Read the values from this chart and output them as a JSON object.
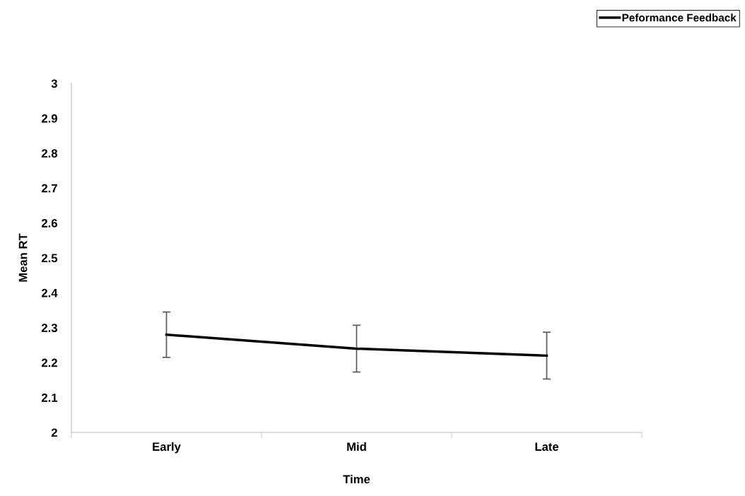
{
  "chart_data": {
    "type": "line",
    "xlabel": "Time",
    "ylabel": "Mean RT",
    "categories": [
      "Early",
      "Mid",
      "Late"
    ],
    "series": [
      {
        "name": "Peformance Feedback",
        "color": "#000000",
        "values": [
          2.28,
          2.24,
          2.22
        ],
        "errors": [
          0.065,
          0.067,
          0.067
        ]
      }
    ],
    "ylim": [
      2,
      3
    ],
    "yticks": [
      2,
      {
        "value": 2.1,
        "label": "2.1"
      },
      {
        "value": 2.2,
        "label": "2.2"
      },
      {
        "value": 2.3,
        "label": "2.3"
      },
      {
        "value": 2.4,
        "label": "2.4"
      },
      {
        "value": 2.5,
        "label": "2.5"
      },
      {
        "value": 2.6,
        "label": "2.6"
      },
      {
        "value": 2.7,
        "label": "2.7"
      },
      {
        "value": 2.8,
        "label": "2.8"
      },
      {
        "value": 2.9,
        "label": "2.9"
      },
      3
    ],
    "grid": false,
    "legend": "top right",
    "marker": "none",
    "line_style": "solid"
  }
}
